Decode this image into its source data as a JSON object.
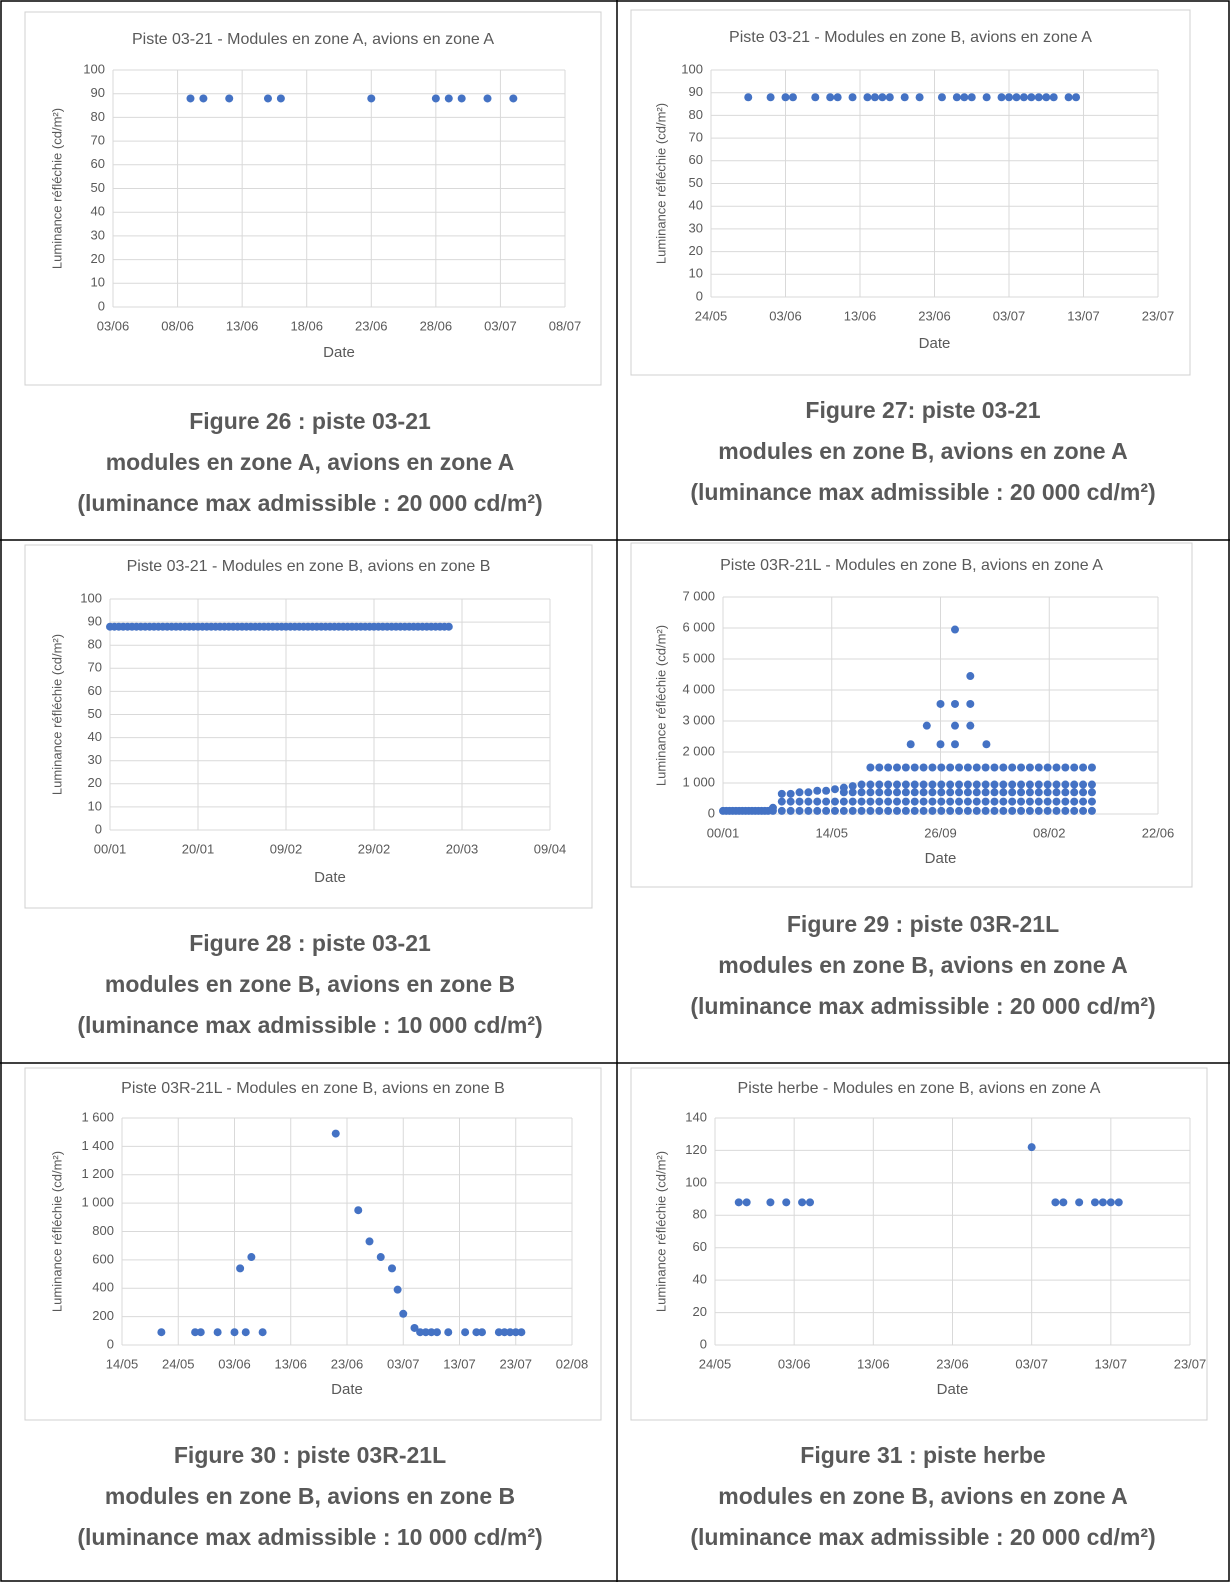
{
  "chart_data": [
    {
      "type": "scatter",
      "title": "Piste 03-21 - Modules en zone A, avions en zone A",
      "x_label": "Date",
      "y_label": "Luminance réfléchie (cd/m²)",
      "color": "#4472c4",
      "grid": true,
      "xlim": [
        0,
        35
      ],
      "xticks": [
        {
          "value": 0,
          "label": "03/06"
        },
        {
          "value": 5,
          "label": "08/06"
        },
        {
          "value": 10,
          "label": "13/06"
        },
        {
          "value": 15,
          "label": "18/06"
        },
        {
          "value": 20,
          "label": "23/06"
        },
        {
          "value": 25,
          "label": "28/06"
        },
        {
          "value": 30,
          "label": "03/07"
        },
        {
          "value": 35,
          "label": "08/07"
        }
      ],
      "ylim": [
        0,
        100
      ],
      "yticks": [
        0,
        10,
        20,
        30,
        40,
        50,
        60,
        70,
        80,
        90,
        100
      ],
      "x": [
        6,
        7,
        9,
        12,
        13,
        20,
        25,
        26,
        27,
        29,
        31
      ],
      "values": [
        88,
        88,
        88,
        88,
        88,
        88,
        88,
        88,
        88,
        88,
        88
      ]
    },
    {
      "type": "scatter",
      "title": "Piste 03-21 - Modules en zone B, avions en zone A",
      "x_label": "Date",
      "y_label": "Luminance réfléchie (cd/m²)",
      "color": "#4472c4",
      "grid": true,
      "xlim": [
        0,
        60
      ],
      "xticks": [
        {
          "value": 0,
          "label": "24/05"
        },
        {
          "value": 10,
          "label": "03/06"
        },
        {
          "value": 20,
          "label": "13/06"
        },
        {
          "value": 30,
          "label": "23/06"
        },
        {
          "value": 40,
          "label": "03/07"
        },
        {
          "value": 50,
          "label": "13/07"
        },
        {
          "value": 60,
          "label": "23/07"
        }
      ],
      "ylim": [
        0,
        100
      ],
      "yticks": [
        0,
        10,
        20,
        30,
        40,
        50,
        60,
        70,
        80,
        90,
        100
      ],
      "x": [
        5,
        8,
        10,
        11,
        14,
        16,
        17,
        19,
        21,
        22,
        23,
        24,
        26,
        28,
        31,
        33,
        34,
        35,
        37,
        39,
        40,
        41,
        42,
        43,
        44,
        45,
        46,
        48,
        49
      ],
      "values": [
        88,
        88,
        88,
        88,
        88,
        88,
        88,
        88,
        88,
        88,
        88,
        88,
        88,
        88,
        88,
        88,
        88,
        88,
        88,
        88,
        88,
        88,
        88,
        88,
        88,
        88,
        88,
        88,
        88
      ]
    },
    {
      "type": "scatter",
      "title": "Piste 03-21 - Modules en zone B, avions en zone B",
      "x_label": "Date",
      "y_label": "Luminance réfléchie (cd/m²)",
      "color": "#4472c4",
      "grid": true,
      "xlim": [
        0,
        100
      ],
      "xticks": [
        {
          "value": 0,
          "label": "00/01"
        },
        {
          "value": 20,
          "label": "20/01"
        },
        {
          "value": 40,
          "label": "09/02"
        },
        {
          "value": 60,
          "label": "29/02"
        },
        {
          "value": 80,
          "label": "20/03"
        },
        {
          "value": 100,
          "label": "09/04"
        }
      ],
      "ylim": [
        0,
        100
      ],
      "yticks": [
        0,
        10,
        20,
        30,
        40,
        50,
        60,
        70,
        80,
        90,
        100
      ],
      "x": [
        0,
        1,
        2,
        3,
        4,
        5,
        6,
        7,
        8,
        9,
        10,
        11,
        12,
        13,
        14,
        15,
        16,
        17,
        18,
        19,
        20,
        21,
        22,
        23,
        24,
        25,
        26,
        27,
        28,
        29,
        30,
        31,
        32,
        33,
        34,
        35,
        36,
        37,
        38,
        39,
        40,
        41,
        42,
        43,
        44,
        45,
        46,
        47,
        48,
        49,
        50,
        51,
        52,
        53,
        54,
        55,
        56,
        57,
        58,
        59,
        60,
        61,
        62,
        63,
        64,
        65,
        66,
        67,
        68,
        69,
        70,
        71,
        72,
        73,
        74,
        75,
        76,
        77
      ],
      "values": [
        88,
        88,
        88,
        88,
        88,
        88,
        88,
        88,
        88,
        88,
        88,
        88,
        88,
        88,
        88,
        88,
        88,
        88,
        88,
        88,
        88,
        88,
        88,
        88,
        88,
        88,
        88,
        88,
        88,
        88,
        88,
        88,
        88,
        88,
        88,
        88,
        88,
        88,
        88,
        88,
        88,
        88,
        88,
        88,
        88,
        88,
        88,
        88,
        88,
        88,
        88,
        88,
        88,
        88,
        88,
        88,
        88,
        88,
        88,
        88,
        88,
        88,
        88,
        88,
        88,
        88,
        88,
        88,
        88,
        88,
        88,
        88,
        88,
        88,
        88,
        88,
        88,
        88
      ]
    },
    {
      "type": "scatter",
      "title": "Piste 03R-21L - Modules en zone B, avions en zone A",
      "x_label": "Date",
      "y_label": "Luminance réfléchie (cd/m²)",
      "color": "#4472c4",
      "grid": true,
      "xlim": [
        0,
        540
      ],
      "xticks": [
        {
          "value": 0,
          "label": "00/01"
        },
        {
          "value": 135,
          "label": "14/05"
        },
        {
          "value": 270,
          "label": "26/09"
        },
        {
          "value": 405,
          "label": "08/02"
        },
        {
          "value": 540,
          "label": "22/06"
        }
      ],
      "ylim": [
        0,
        7000
      ],
      "yticks": [
        0,
        {
          "value": 1000,
          "label": "1 000"
        },
        {
          "value": 2000,
          "label": "2 000"
        },
        {
          "value": 3000,
          "label": "3 000"
        },
        {
          "value": 4000,
          "label": "4 000"
        },
        {
          "value": 5000,
          "label": "5 000"
        },
        {
          "value": 6000,
          "label": "6 000"
        },
        {
          "value": 7000,
          "label": "7 000"
        }
      ],
      "x": [
        0,
        4,
        8,
        12,
        16,
        20,
        24,
        28,
        32,
        36,
        40,
        44,
        48,
        52,
        56,
        62,
        62,
        73,
        73,
        73,
        84,
        84,
        84,
        95,
        95,
        95,
        106,
        106,
        106,
        117,
        117,
        117,
        128,
        128,
        128,
        139,
        139,
        139,
        150,
        150,
        150,
        150,
        161,
        161,
        161,
        161,
        172,
        172,
        172,
        172,
        183,
        183,
        183,
        183,
        183,
        194,
        194,
        194,
        194,
        194,
        205,
        205,
        205,
        205,
        205,
        216,
        216,
        216,
        216,
        216,
        227,
        227,
        227,
        227,
        227,
        238,
        238,
        238,
        238,
        238,
        249,
        249,
        249,
        249,
        249,
        260,
        260,
        260,
        260,
        260,
        271,
        271,
        271,
        271,
        271,
        282,
        282,
        282,
        282,
        282,
        293,
        293,
        293,
        293,
        293,
        304,
        304,
        304,
        304,
        304,
        315,
        315,
        315,
        315,
        315,
        326,
        326,
        326,
        326,
        326,
        337,
        337,
        337,
        337,
        337,
        348,
        348,
        348,
        348,
        348,
        359,
        359,
        359,
        359,
        359,
        370,
        370,
        370,
        370,
        370,
        381,
        381,
        381,
        381,
        381,
        392,
        392,
        392,
        392,
        392,
        403,
        403,
        403,
        403,
        403,
        414,
        414,
        414,
        414,
        414,
        425,
        425,
        425,
        425,
        425,
        436,
        436,
        436,
        436,
        436,
        447,
        447,
        447,
        447,
        447,
        458,
        458,
        458,
        458,
        458,
        233,
        253,
        270,
        270,
        288,
        288,
        288,
        288,
        307,
        307,
        307,
        327
      ],
      "values": [
        100,
        100,
        100,
        100,
        100,
        100,
        100,
        100,
        100,
        100,
        100,
        100,
        100,
        100,
        100,
        100,
        200,
        100,
        400,
        650,
        100,
        400,
        650,
        100,
        400,
        700,
        100,
        400,
        700,
        100,
        400,
        750,
        100,
        400,
        750,
        100,
        400,
        800,
        100,
        400,
        700,
        850,
        100,
        400,
        700,
        900,
        100,
        400,
        700,
        950,
        100,
        400,
        700,
        950,
        1500,
        100,
        400,
        700,
        950,
        1500,
        100,
        400,
        700,
        950,
        1500,
        100,
        400,
        700,
        950,
        1500,
        100,
        400,
        700,
        950,
        1500,
        100,
        400,
        700,
        950,
        1500,
        100,
        400,
        700,
        950,
        1500,
        100,
        400,
        700,
        950,
        1500,
        100,
        400,
        700,
        950,
        1500,
        100,
        400,
        700,
        950,
        1500,
        100,
        400,
        700,
        950,
        1500,
        100,
        400,
        700,
        950,
        1500,
        100,
        400,
        700,
        950,
        1500,
        100,
        400,
        700,
        950,
        1500,
        100,
        400,
        700,
        950,
        1500,
        100,
        400,
        700,
        950,
        1500,
        100,
        400,
        700,
        950,
        1500,
        100,
        400,
        700,
        950,
        1500,
        100,
        400,
        700,
        950,
        1500,
        100,
        400,
        700,
        950,
        1500,
        100,
        400,
        700,
        950,
        1500,
        100,
        400,
        700,
        950,
        1500,
        100,
        400,
        700,
        950,
        1500,
        100,
        400,
        700,
        950,
        1500,
        100,
        400,
        700,
        950,
        1500,
        100,
        400,
        700,
        950,
        1500,
        2250,
        2850,
        3550,
        2250,
        5950,
        3550,
        2850,
        2250,
        4450,
        3550,
        2850,
        2250
      ]
    },
    {
      "type": "scatter",
      "title": "Piste 03R-21L - Modules en zone B, avions en zone B",
      "x_label": "Date",
      "y_label": "Luminance réfléchie (cd/m²)",
      "color": "#4472c4",
      "grid": true,
      "xlim": [
        0,
        80
      ],
      "xticks": [
        {
          "value": 0,
          "label": "14/05"
        },
        {
          "value": 10,
          "label": "24/05"
        },
        {
          "value": 20,
          "label": "03/06"
        },
        {
          "value": 30,
          "label": "13/06"
        },
        {
          "value": 40,
          "label": "23/06"
        },
        {
          "value": 50,
          "label": "03/07"
        },
        {
          "value": 60,
          "label": "13/07"
        },
        {
          "value": 70,
          "label": "23/07"
        },
        {
          "value": 80,
          "label": "02/08"
        }
      ],
      "ylim": [
        0,
        1600
      ],
      "yticks": [
        0,
        200,
        400,
        600,
        800,
        {
          "value": 1000,
          "label": "1 000"
        },
        {
          "value": 1200,
          "label": "1 200"
        },
        {
          "value": 1400,
          "label": "1 400"
        },
        {
          "value": 1600,
          "label": "1 600"
        }
      ],
      "x": [
        7,
        13,
        14,
        17,
        20,
        21,
        22,
        23,
        25,
        38,
        42,
        44,
        46,
        48,
        49,
        50,
        52,
        53,
        54,
        55,
        56,
        58,
        61,
        63,
        64,
        67,
        68,
        69,
        70,
        71
      ],
      "values": [
        90,
        90,
        90,
        90,
        90,
        540,
        90,
        620,
        90,
        1490,
        950,
        730,
        620,
        540,
        390,
        220,
        120,
        90,
        90,
        90,
        90,
        90,
        90,
        90,
        90,
        90,
        90,
        90,
        90,
        90
      ]
    },
    {
      "type": "scatter",
      "title": "Piste herbe - Modules en zone B, avions en zone A",
      "x_label": "Date",
      "y_label": "Luminance réfléchie (cd/m²)",
      "color": "#4472c4",
      "grid": true,
      "xlim": [
        0,
        60
      ],
      "xticks": [
        {
          "value": 0,
          "label": "24/05"
        },
        {
          "value": 10,
          "label": "03/06"
        },
        {
          "value": 20,
          "label": "13/06"
        },
        {
          "value": 30,
          "label": "23/06"
        },
        {
          "value": 40,
          "label": "03/07"
        },
        {
          "value": 50,
          "label": "13/07"
        },
        {
          "value": 60,
          "label": "23/07"
        }
      ],
      "ylim": [
        0,
        140
      ],
      "yticks": [
        0,
        20,
        40,
        60,
        80,
        100,
        120,
        140
      ],
      "x": [
        3,
        4,
        7,
        9,
        11,
        12,
        40,
        43,
        44,
        46,
        48,
        49,
        50,
        51
      ],
      "values": [
        88,
        88,
        88,
        88,
        88,
        88,
        122,
        88,
        88,
        88,
        88,
        88,
        88,
        88
      ]
    }
  ],
  "captions": [
    [
      "Figure 26 : piste 03-21",
      "modules en zone A, avions en zone A",
      "(luminance max admissible : 20 000 cd/m²)"
    ],
    [
      "Figure 27: piste 03-21",
      "modules en zone B, avions en zone A",
      "(luminance max admissible : 20 000 cd/m²)"
    ],
    [
      "Figure 28 : piste 03-21",
      "modules en zone B, avions en zone B",
      "(luminance max admissible : 10 000 cd/m²)"
    ],
    [
      "Figure 29 : piste 03R-21L",
      "modules en zone B, avions en zone A",
      "(luminance max admissible : 20 000 cd/m²)"
    ],
    [
      "Figure 30 : piste 03R-21L",
      "modules en zone B, avions en zone B",
      "(luminance max admissible : 10 000 cd/m²)"
    ],
    [
      "Figure 31 : piste herbe",
      "modules en zone B, avions en zone A",
      "(luminance max admissible : 20 000 cd/m²)"
    ]
  ]
}
